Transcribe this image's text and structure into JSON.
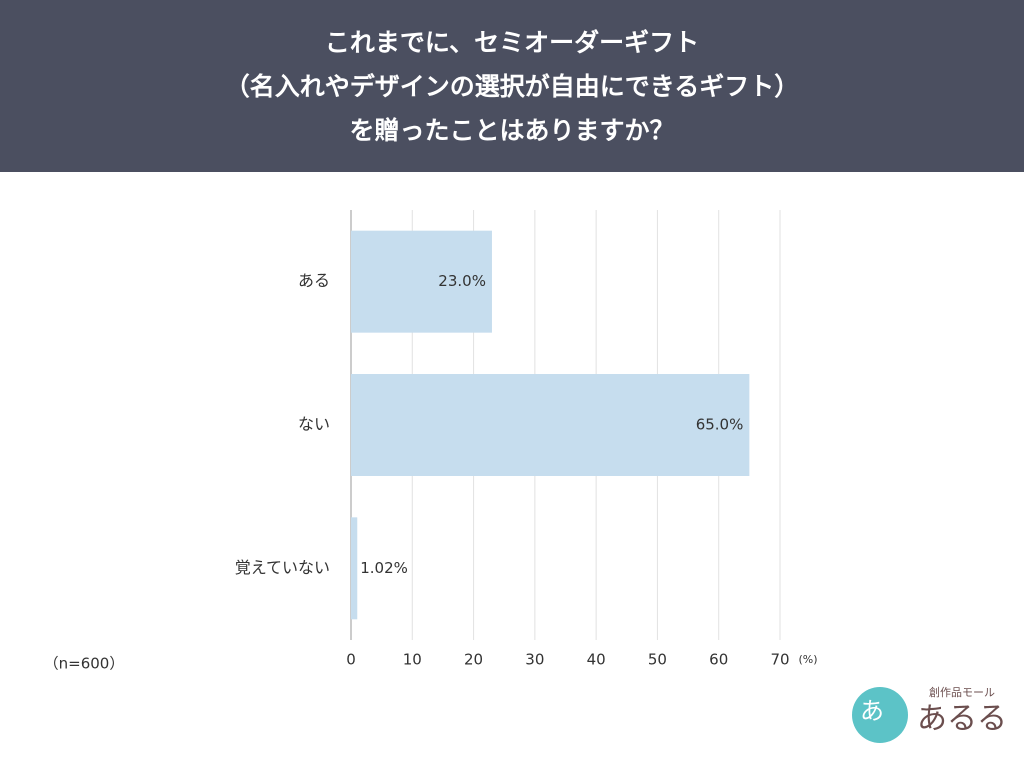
{
  "chart_data": {
    "type": "barh",
    "title": [
      "これまでに、セミオーダーギフト",
      "（名入れやデザインの選択が自由にできるギフト）",
      "を贈ったことはありますか？"
    ],
    "categories": [
      "ある",
      "ない",
      "覚えていない"
    ],
    "values": [
      23.0,
      65.0,
      1.02
    ],
    "value_labels": [
      "23.0%",
      "65.0%",
      "1.02%"
    ],
    "color": "#c6ddee",
    "xlim": [
      0,
      70
    ],
    "xticks": [
      0,
      10,
      20,
      30,
      40,
      50,
      60,
      70
    ],
    "x_unit": "(%)",
    "note": "（n=600）",
    "grid": true
  },
  "logo": {
    "tagline": "創作品モール",
    "name": "あるる",
    "mark": "あ"
  }
}
